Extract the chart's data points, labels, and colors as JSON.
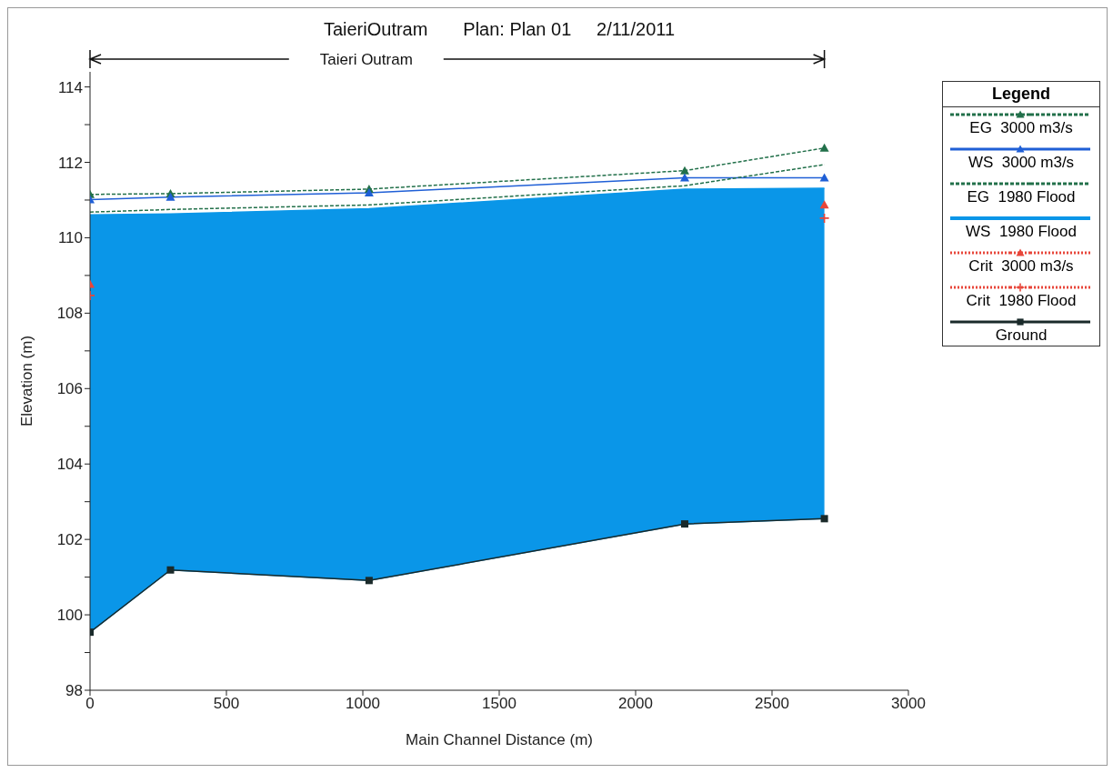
{
  "chart_data": {
    "type": "line",
    "title": "TaieriOutram       Plan: Plan 01     2/11/2011",
    "xlabel": "Main Channel Distance (m)",
    "ylabel": "Elevation (m)",
    "legend_title": "Legend",
    "legend": "right",
    "annotations": [
      "Taieri Outram"
    ],
    "x": [
      0,
      295,
      1023,
      2180,
      2692
    ],
    "xlim": [
      0,
      3000
    ],
    "xticks": [
      0,
      500,
      1000,
      1500,
      2000,
      2500,
      3000
    ],
    "ylim": [
      98,
      114.4
    ],
    "yticks": [
      98,
      {
        "value": 99,
        "label": null
      },
      100,
      {
        "value": 101,
        "label": null
      },
      102,
      {
        "value": 103,
        "label": null
      },
      104,
      {
        "value": 105,
        "label": null
      },
      106,
      {
        "value": 107,
        "label": null
      },
      108,
      {
        "value": 109,
        "label": null
      },
      110,
      {
        "value": 111,
        "label": null
      },
      112,
      {
        "value": 113,
        "label": null
      },
      114
    ],
    "series": [
      {
        "name": "EG  3000 m3/s",
        "color": "#22704a",
        "line_style": "dashed",
        "marker": "triangle",
        "values": [
          111.15,
          111.17,
          111.29,
          111.78,
          112.38
        ]
      },
      {
        "name": "WS  3000 m3/s",
        "color": "#1f5fd6",
        "line_style": "solid",
        "marker": "triangle",
        "values": [
          111.01,
          111.08,
          111.19,
          111.59,
          111.59
        ]
      },
      {
        "name": "EG  1980 Flood",
        "color": "#22704a",
        "line_style": "dashed",
        "marker": "none",
        "values": [
          110.68,
          110.75,
          110.87,
          111.38,
          111.94
        ]
      },
      {
        "name": "WS  1980 Flood",
        "type": "area",
        "color": "#0a96e8",
        "line_style": "solid",
        "marker": "none",
        "values": [
          110.61,
          110.63,
          110.77,
          111.29,
          111.31
        ]
      },
      {
        "name": "Crit  3000 m3/s",
        "type": "scatter",
        "color": "#e8463a",
        "line_style": "dotted",
        "marker": "triangle",
        "values": [
          108.77,
          null,
          null,
          null,
          110.87
        ]
      },
      {
        "name": "Crit  1980 Flood",
        "type": "scatter",
        "color": "#e8463a",
        "line_style": "dotted",
        "marker": "cross",
        "values": [
          108.47,
          null,
          null,
          null,
          110.52
        ]
      },
      {
        "name": "Ground",
        "color": "#1a2a2a",
        "line_style": "solid",
        "marker": "square",
        "values": [
          99.54,
          101.19,
          100.91,
          102.41,
          102.55
        ]
      }
    ]
  }
}
